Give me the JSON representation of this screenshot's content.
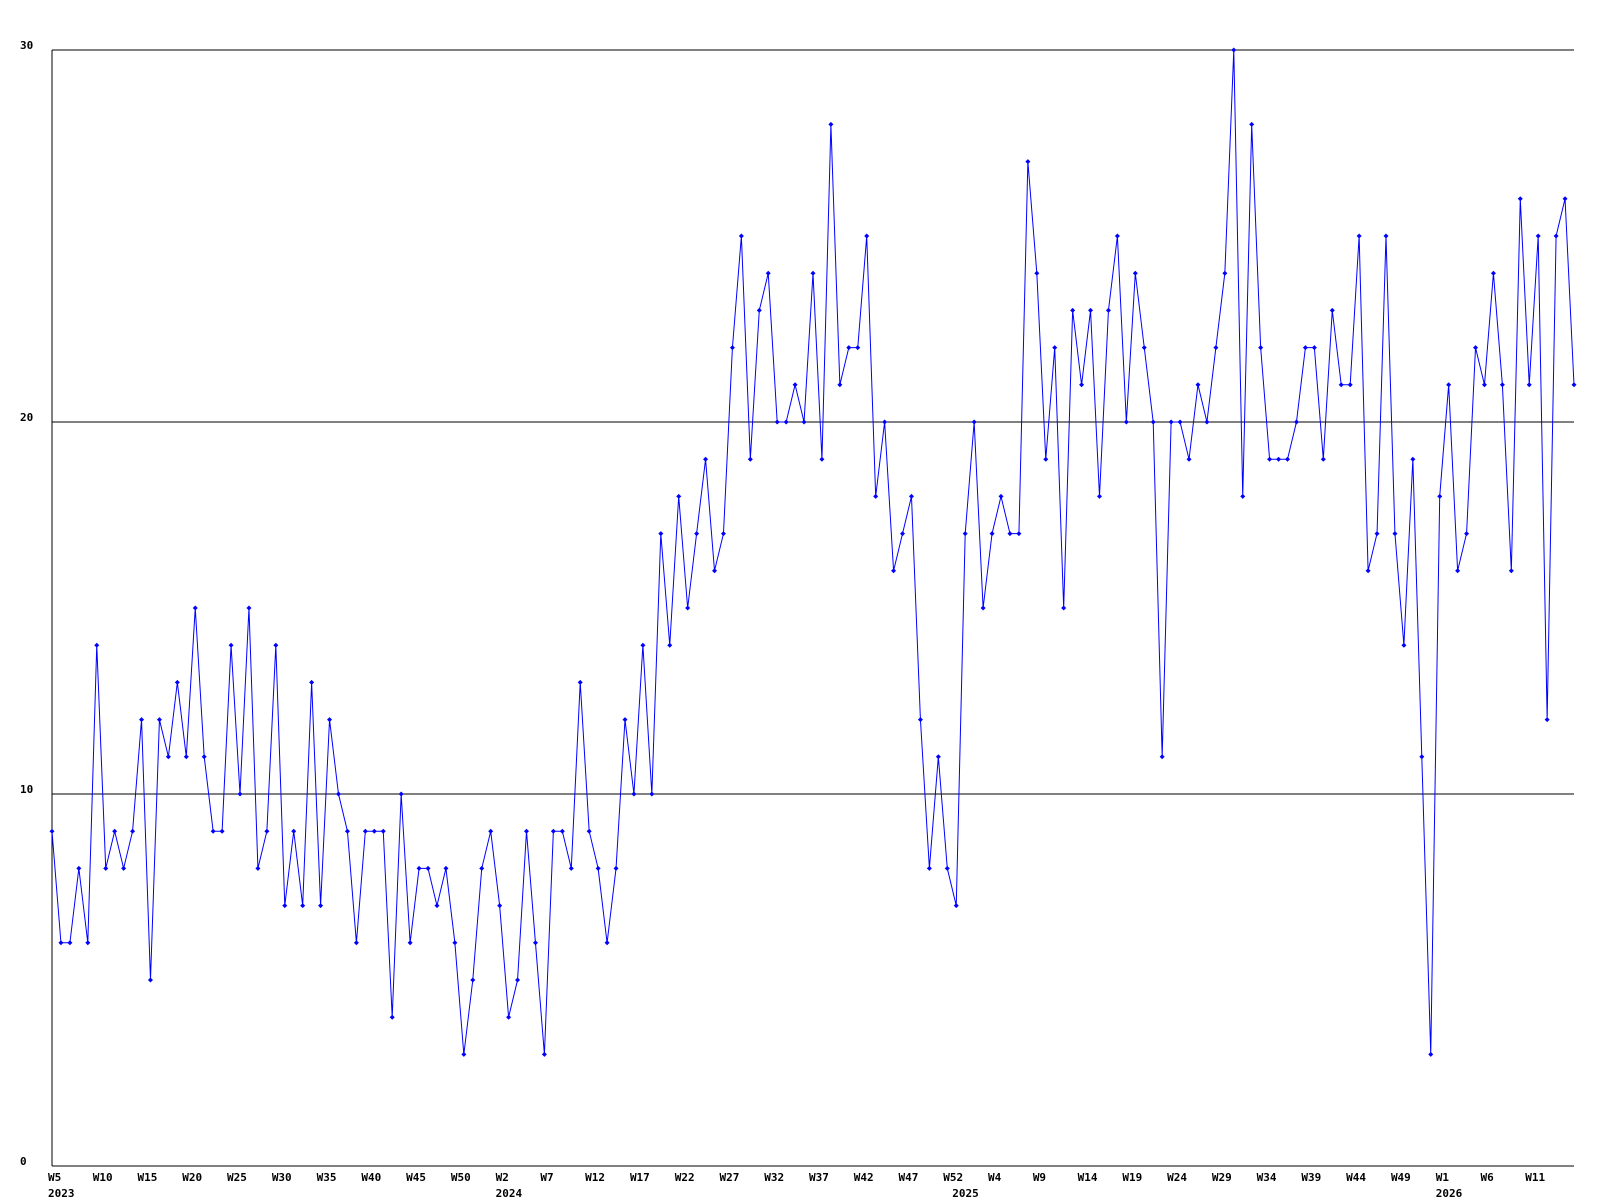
{
  "chart_data": {
    "type": "line",
    "categories": [
      "W5",
      null,
      null,
      null,
      null,
      "W10",
      null,
      null,
      null,
      null,
      "W15",
      null,
      null,
      null,
      null,
      "W20",
      null,
      null,
      null,
      null,
      "W25",
      null,
      null,
      null,
      null,
      "W30",
      null,
      null,
      null,
      null,
      "W35",
      null,
      null,
      null,
      null,
      "W40",
      null,
      null,
      null,
      null,
      "W45",
      null,
      null,
      null,
      null,
      "W50",
      null,
      null,
      null,
      null,
      "W2",
      null,
      null,
      null,
      null,
      "W7",
      null,
      null,
      null,
      null,
      "W12",
      null,
      null,
      null,
      null,
      "W17",
      null,
      null,
      null,
      null,
      "W22",
      null,
      null,
      null,
      null,
      "W27",
      null,
      null,
      null,
      null,
      "W32",
      null,
      null,
      null,
      null,
      "W37",
      null,
      null,
      null,
      null,
      "W42",
      null,
      null,
      null,
      null,
      "W47",
      null,
      null,
      null,
      null,
      "W52",
      null,
      null,
      null,
      null,
      "W4",
      null,
      null,
      null,
      null,
      "W9",
      null,
      null,
      null,
      null,
      "W14",
      null,
      null,
      null,
      null,
      "W19",
      null,
      null,
      null,
      null,
      "W24",
      null,
      null,
      null,
      null,
      "W29",
      null,
      null,
      null,
      null,
      "W34",
      null,
      null,
      null,
      null,
      "W39",
      null,
      null,
      null,
      null,
      "W44",
      null,
      null,
      null,
      null,
      "W49",
      null,
      null,
      null,
      null,
      "W1",
      null,
      null,
      null,
      null,
      "W6",
      null,
      null,
      null,
      null,
      "W11",
      null,
      null,
      null,
      null,
      null
    ],
    "year_labels": [
      "2023",
      null,
      null,
      null,
      null,
      null,
      null,
      null,
      null,
      null,
      null,
      null,
      null,
      null,
      null,
      null,
      null,
      null,
      null,
      null,
      null,
      null,
      null,
      null,
      null,
      null,
      null,
      null,
      null,
      null,
      null,
      null,
      null,
      null,
      null,
      null,
      null,
      null,
      null,
      null,
      null,
      null,
      null,
      null,
      null,
      null,
      null,
      null,
      null,
      null,
      "2024",
      null,
      null,
      null,
      null,
      null,
      null,
      null,
      null,
      null,
      null,
      null,
      null,
      null,
      null,
      null,
      null,
      null,
      null,
      null,
      null,
      null,
      null,
      null,
      null,
      null,
      null,
      null,
      null,
      null,
      null,
      null,
      null,
      null,
      null,
      null,
      null,
      null,
      null,
      null,
      null,
      null,
      null,
      null,
      null,
      null,
      null,
      null,
      null,
      null,
      null,
      "2025",
      null,
      null,
      null,
      null,
      null,
      null,
      null,
      null,
      null,
      null,
      null,
      null,
      null,
      null,
      null,
      null,
      null,
      null,
      null,
      null,
      null,
      null,
      null,
      null,
      null,
      null,
      null,
      null,
      null,
      null,
      null,
      null,
      null,
      null,
      null,
      null,
      null,
      null,
      null,
      null,
      null,
      null,
      null,
      null,
      null,
      null,
      null,
      null,
      null,
      null,
      null,
      null,
      null,
      "2026",
      null,
      null,
      null,
      null,
      null,
      null,
      null,
      null,
      null,
      null,
      null,
      null,
      null,
      null,
      null
    ],
    "series": [
      {
        "color": "#0000ff",
        "values": [
          9,
          6,
          6,
          8,
          6,
          14,
          8,
          9,
          8,
          9,
          12,
          5,
          12,
          11,
          13,
          11,
          15,
          11,
          9,
          9,
          14,
          10,
          15,
          8,
          9,
          14,
          7,
          9,
          7,
          13,
          7,
          12,
          10,
          9,
          6,
          9,
          9,
          9,
          4,
          10,
          6,
          8,
          8,
          7,
          8,
          6,
          3,
          5,
          8,
          9,
          7,
          4,
          5,
          9,
          6,
          3,
          9,
          9,
          8,
          13,
          9,
          8,
          6,
          8,
          12,
          10,
          14,
          10,
          17,
          14,
          18,
          15,
          17,
          19,
          16,
          17,
          22,
          25,
          19,
          23,
          24,
          20,
          20,
          21,
          20,
          24,
          19,
          28,
          21,
          22,
          22,
          25,
          18,
          20,
          16,
          17,
          18,
          12,
          8,
          11,
          8,
          7,
          17,
          20,
          15,
          17,
          18,
          17,
          17,
          27,
          24,
          19,
          22,
          15,
          23,
          21,
          23,
          18,
          23,
          25,
          20,
          24,
          22,
          20,
          11,
          20,
          20,
          19,
          21,
          20,
          22,
          24,
          30,
          18,
          28,
          22,
          19,
          19,
          19,
          20,
          22,
          22,
          19,
          23,
          21,
          21,
          25,
          16,
          17,
          25,
          17,
          14,
          19,
          11,
          3,
          18,
          21,
          16,
          17,
          22,
          21,
          24,
          21,
          16,
          26,
          21,
          25,
          12,
          25,
          26,
          21
        ]
      }
    ],
    "ylim": [
      0,
      30
    ],
    "yticks": [
      0,
      10,
      20,
      30
    ],
    "grid": true
  }
}
